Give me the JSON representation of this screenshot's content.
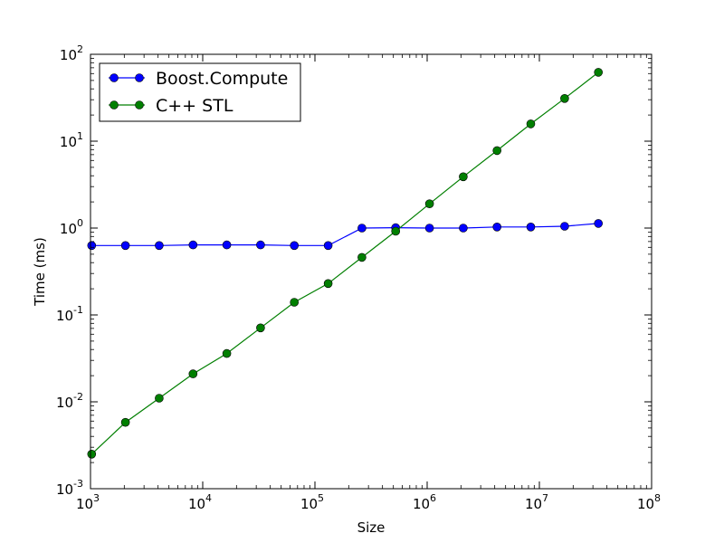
{
  "chart_data": {
    "type": "line",
    "title": "",
    "xlabel": "Size",
    "ylabel": "Time (ms)",
    "xscale": "log",
    "yscale": "log",
    "xlim": [
      1000,
      100000000
    ],
    "ylim": [
      0.001,
      100
    ],
    "grid": false,
    "legend_position": "top-left",
    "x_ticks": [
      {
        "value": 1000,
        "base": "10",
        "exp": "3"
      },
      {
        "value": 10000,
        "base": "10",
        "exp": "4"
      },
      {
        "value": 100000,
        "base": "10",
        "exp": "5"
      },
      {
        "value": 1000000,
        "base": "10",
        "exp": "6"
      },
      {
        "value": 10000000,
        "base": "10",
        "exp": "7"
      },
      {
        "value": 100000000,
        "base": "10",
        "exp": "8"
      }
    ],
    "y_ticks": [
      {
        "value": 0.001,
        "base": "10",
        "exp": "-3"
      },
      {
        "value": 0.01,
        "base": "10",
        "exp": "-2"
      },
      {
        "value": 0.1,
        "base": "10",
        "exp": "-1"
      },
      {
        "value": 1,
        "base": "10",
        "exp": "0"
      },
      {
        "value": 10,
        "base": "10",
        "exp": "1"
      },
      {
        "value": 100,
        "base": "10",
        "exp": "2"
      }
    ],
    "x": [
      1024,
      2048,
      4096,
      8192,
      16384,
      32768,
      65536,
      131072,
      262144,
      524288,
      1048576,
      2097152,
      4194304,
      8388608,
      16777216,
      33554432
    ],
    "series": [
      {
        "name": "Boost.Compute",
        "color": "#0000ff",
        "marker_color": "#0000ff",
        "values": [
          0.63,
          0.63,
          0.63,
          0.64,
          0.64,
          0.64,
          0.63,
          0.63,
          1.0,
          1.01,
          1.0,
          1.0,
          1.03,
          1.03,
          1.05,
          1.13
        ]
      },
      {
        "name": "C++ STL",
        "color": "#007f00",
        "marker_color": "#007f00",
        "values": [
          0.0025,
          0.0058,
          0.011,
          0.021,
          0.036,
          0.071,
          0.14,
          0.23,
          0.46,
          0.92,
          1.9,
          3.9,
          7.8,
          15.8,
          31.0,
          62.0
        ]
      }
    ]
  }
}
